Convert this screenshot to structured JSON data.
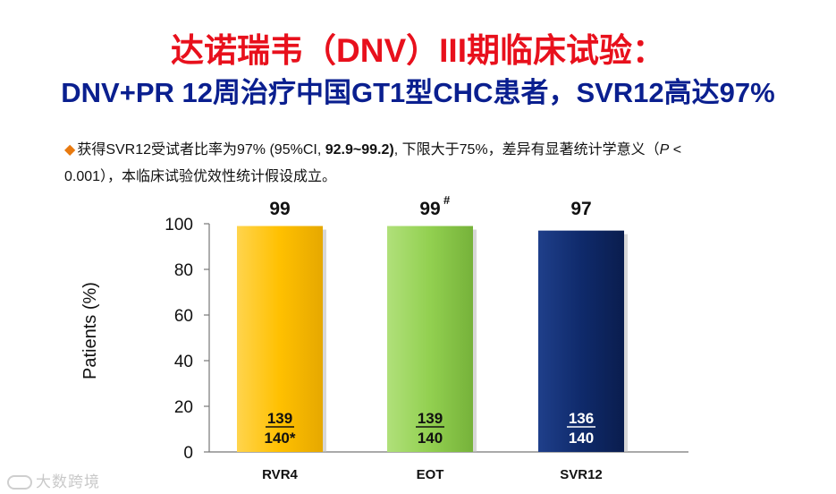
{
  "title": "达诺瑞韦（DNV）III期临床试验：",
  "subtitle": "DNV+PR 12周治疗中国GT1型CHC患者，SVR12高达97%",
  "note": {
    "bullet": "◆",
    "part1": "获得SVR12受试者比率为97% (95%CI, ",
    "part2": "92.9~99.2)",
    "part3": ", 下限大于75%，差异有显著统计学意义（",
    "part4": "P",
    "part5": " < 0.001），本临床试验优效性统计假设成立。"
  },
  "watermark": "大数跨境",
  "colors": {
    "title": "#e8101c",
    "subtitle": "#0a1f8f",
    "bullet": "#e87a10",
    "rvr4": "#ffc000",
    "eot": "#92d050",
    "svr12": "#0f2a6b"
  },
  "chart_data": {
    "type": "bar",
    "ylabel": "Patients (%)",
    "ylim": [
      0,
      100
    ],
    "yticks": [
      "0",
      "20",
      "40",
      "60",
      "80",
      "100"
    ],
    "categories": [
      "RVR4",
      "EOT",
      "SVR12"
    ],
    "values": [
      99,
      99,
      97
    ],
    "value_labels": [
      "99",
      "99",
      "97"
    ],
    "value_superscripts": [
      "",
      "#",
      ""
    ],
    "numerators": [
      "139",
      "139",
      "136"
    ],
    "denominators": [
      "140*",
      "140",
      "140"
    ],
    "bar_colors": [
      "#ffc000",
      "#92d050",
      "#0f2a6b"
    ],
    "fraction_colors": [
      "#111111",
      "#111111",
      "#ffffff"
    ],
    "grid": false
  }
}
